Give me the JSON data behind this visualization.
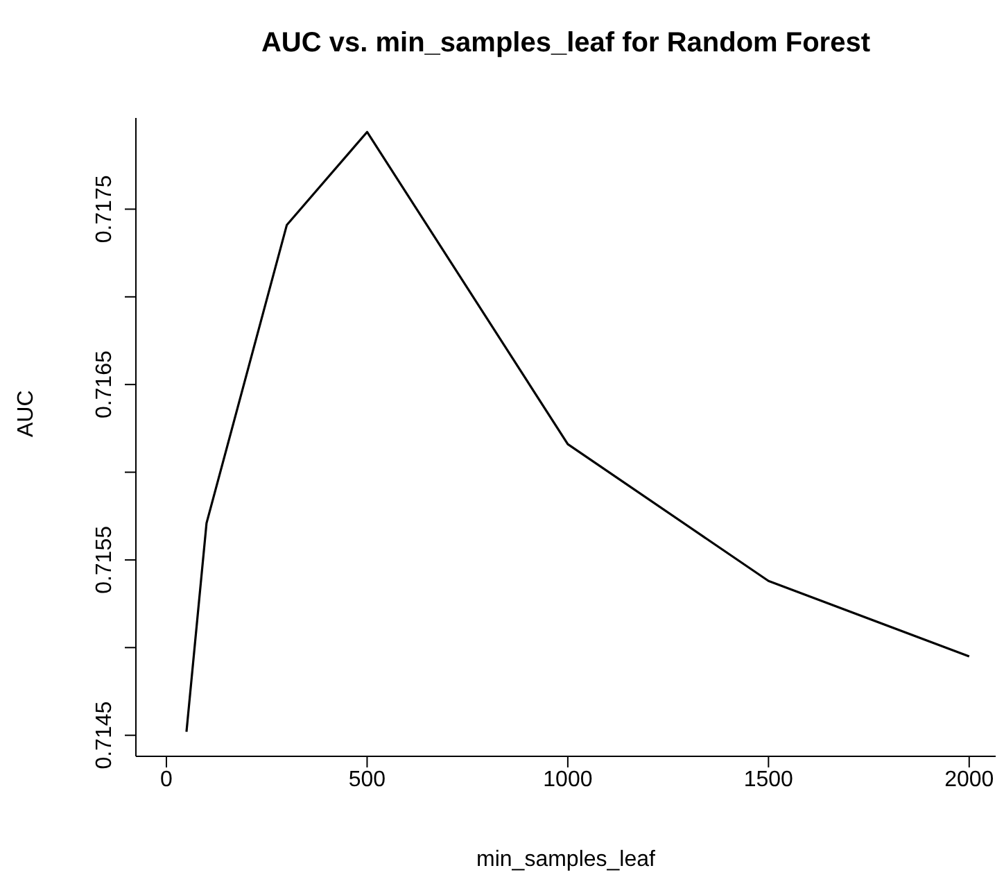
{
  "chart_data": {
    "type": "line",
    "title": "AUC vs. min_samples_leaf for Random Forest",
    "xlabel": "min_samples_leaf",
    "ylabel": "AUC",
    "x": [
      50,
      100,
      300,
      500,
      1000,
      1500,
      2000
    ],
    "series": [
      {
        "color": "#000000",
        "values": [
          0.71452,
          0.71571,
          0.71741,
          0.71794,
          0.71616,
          0.71538,
          0.71495
        ]
      }
    ],
    "xlim": [
      -76,
      2066
    ],
    "xticks": [
      0,
      500,
      1000,
      1500,
      2000
    ],
    "ylim": [
      0.71438,
      0.71802
    ],
    "yticks": [
      0.7145,
      {
        "value": 0.715,
        "label": null
      },
      0.7155,
      {
        "value": 0.716,
        "label": null
      },
      0.7165,
      {
        "value": 0.717,
        "label": null
      },
      0.7175
    ],
    "grid": false,
    "legend": false
  }
}
